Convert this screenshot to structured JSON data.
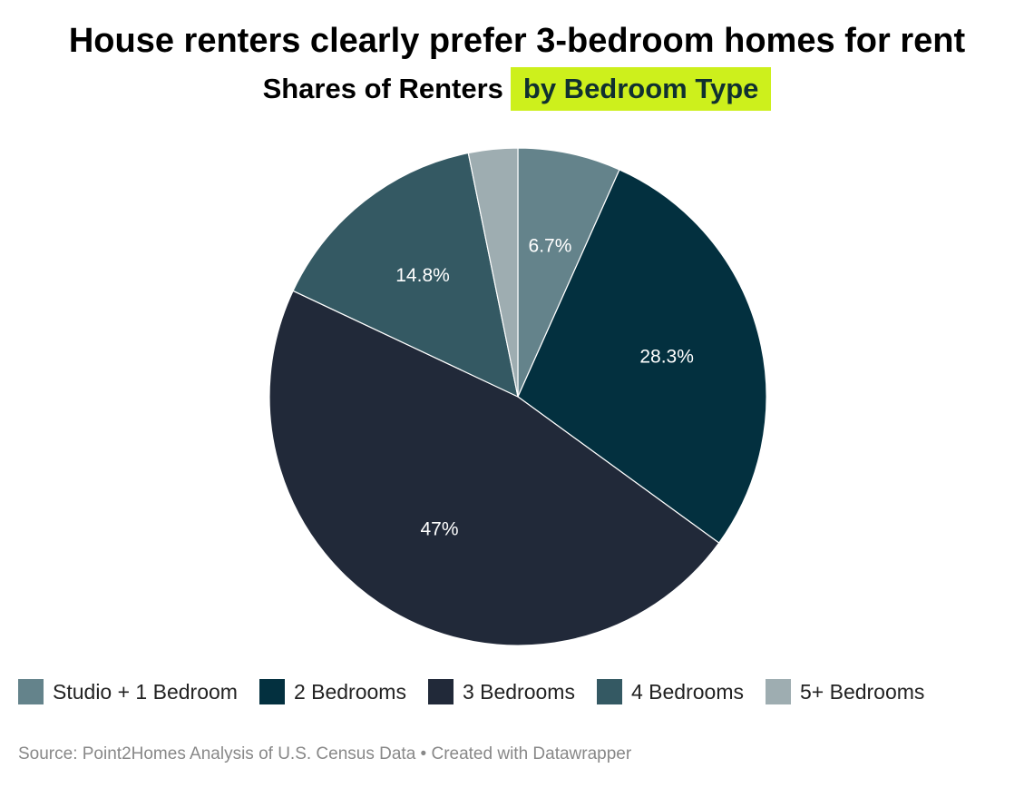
{
  "header": {
    "title": "House renters clearly prefer 3-bedroom homes for rent",
    "subtitle_main": "Shares of Renters",
    "subtitle_highlight": "by Bedroom Type",
    "highlight_color": "#cdf01c"
  },
  "footer": {
    "source": "Source: Point2Homes Analysis of U.S. Census Data • Created with Datawrapper"
  },
  "chart_data": {
    "type": "pie",
    "title": "House renters clearly prefer 3-bedroom homes for rent",
    "subtitle": "Shares of Renters by Bedroom Type",
    "legend_position": "bottom",
    "slices": [
      {
        "name": "Studio + 1 Bedroom",
        "value": 6.7,
        "label": "6.7%",
        "color": "#64838b"
      },
      {
        "name": "2 Bedrooms",
        "value": 28.3,
        "label": "28.3%",
        "color": "#03303f"
      },
      {
        "name": "3 Bedrooms",
        "value": 47,
        "label": "47%",
        "color": "#212939"
      },
      {
        "name": "4 Bedrooms",
        "value": 14.8,
        "label": "14.8%",
        "color": "#345963"
      },
      {
        "name": "5+ Bedrooms",
        "value": 3.2,
        "label": "",
        "color": "#9eadb1"
      }
    ]
  }
}
